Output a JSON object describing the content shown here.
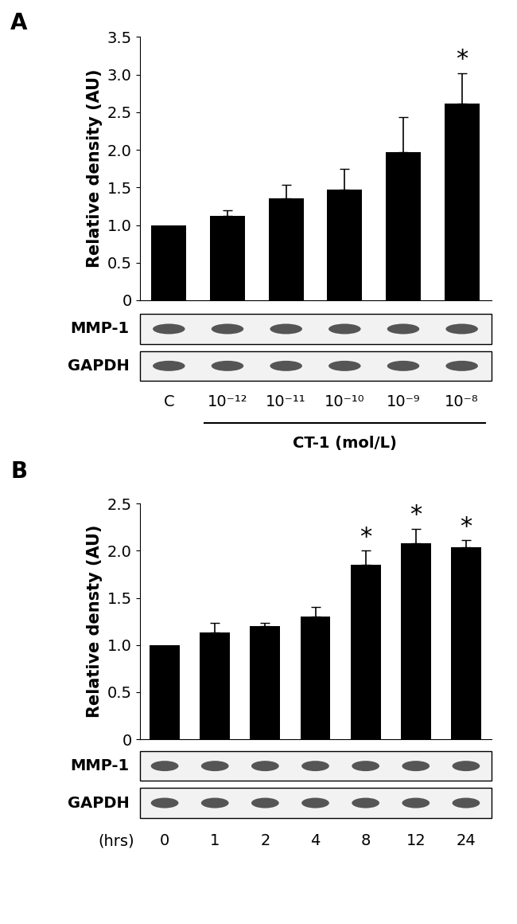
{
  "chart_data": [
    {
      "type": "bar",
      "title": "A",
      "y_label": "Relative density (AU)",
      "x_label": "CT-1 (mol/L)",
      "categories": [
        "C",
        "10⁻¹²",
        "10⁻¹¹",
        "10⁻¹⁰",
        "10⁻⁹",
        "10⁻⁸"
      ],
      "values": [
        1.0,
        1.12,
        1.35,
        1.47,
        1.97,
        2.62
      ],
      "errors": [
        null,
        0.08,
        0.18,
        0.28,
        0.46,
        0.4
      ],
      "annotations": [
        {
          "category": "10⁻⁸",
          "text": "*"
        }
      ],
      "blot_rows": [
        "MMP-1",
        "GAPDH"
      ],
      "color": "#000000",
      "ylim": [
        0,
        3.5
      ],
      "yticks": [
        0,
        0.5,
        1.0,
        1.5,
        2.0,
        2.5,
        3.0,
        3.5
      ],
      "grid": false
    },
    {
      "type": "bar",
      "title": "B",
      "y_label": "Relative densty (AU)",
      "x_label": "(hrs)",
      "categories": [
        "0",
        "1",
        "2",
        "4",
        "8",
        "12",
        "24"
      ],
      "values": [
        1.0,
        1.13,
        1.2,
        1.3,
        1.85,
        2.08,
        2.04
      ],
      "errors": [
        null,
        0.1,
        0.03,
        0.1,
        0.15,
        0.15,
        0.07
      ],
      "annotations": [
        {
          "category": "8",
          "text": "*"
        },
        {
          "category": "12",
          "text": "*"
        },
        {
          "category": "24",
          "text": "*"
        }
      ],
      "blot_rows": [
        "MMP-1",
        "GAPDH"
      ],
      "color": "#000000",
      "ylim": [
        0,
        2.5
      ],
      "yticks": [
        0,
        0.5,
        1.0,
        1.5,
        2.0,
        2.5
      ],
      "grid": false
    }
  ]
}
